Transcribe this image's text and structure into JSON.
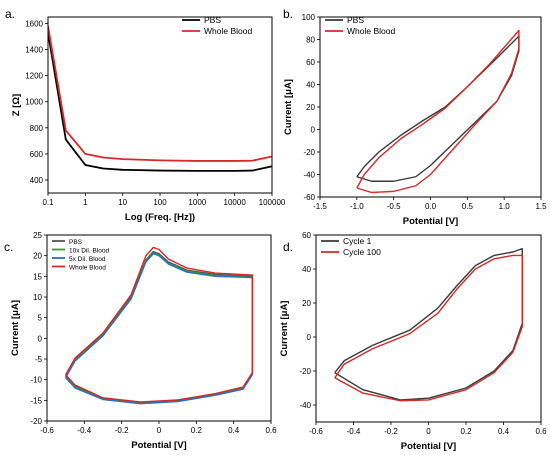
{
  "chart_data": [
    {
      "id": "a",
      "panel_label": "a.",
      "type": "line",
      "xlabel": "Log (Freq. [Hz])",
      "ylabel": "Z [Ω]",
      "xscale": "log",
      "xlim": [
        0.1,
        100000
      ],
      "ylim": [
        300,
        1650
      ],
      "xticks": [
        0.1,
        1,
        10,
        100,
        1000,
        10000,
        100000
      ],
      "xtick_labels": [
        "0.1",
        "1",
        "10",
        "100",
        "1000",
        "10000",
        "100000"
      ],
      "yticks": [
        400,
        600,
        800,
        1000,
        1200,
        1400,
        1600
      ],
      "ytick_labels": [
        "400",
        "600",
        "800",
        "1000",
        "1200",
        "1400",
        "1600"
      ],
      "legend": "top-right",
      "series": [
        {
          "name": "PBS",
          "color": "#000000",
          "points": [
            [
              0.1,
              1530
            ],
            [
              0.3,
              710
            ],
            [
              1,
              515
            ],
            [
              3,
              488
            ],
            [
              10,
              478
            ],
            [
              100,
              472
            ],
            [
              1000,
              470
            ],
            [
              10000,
              470
            ],
            [
              30000,
              472
            ],
            [
              100000,
              505
            ]
          ]
        },
        {
          "name": "Whole Blood",
          "color": "#d42a2a",
          "points": [
            [
              0.1,
              1580
            ],
            [
              0.3,
              780
            ],
            [
              1,
              600
            ],
            [
              3,
              572
            ],
            [
              10,
              560
            ],
            [
              100,
              550
            ],
            [
              1000,
              546
            ],
            [
              10000,
              546
            ],
            [
              30000,
              548
            ],
            [
              100000,
              580
            ]
          ]
        }
      ]
    },
    {
      "id": "b",
      "panel_label": "b.",
      "type": "line",
      "xlabel": "Potential [V]",
      "ylabel": "Current [μA]",
      "xlim": [
        -1.5,
        1.5
      ],
      "ylim": [
        -60,
        100
      ],
      "xticks": [
        -1.5,
        -1,
        -0.5,
        0,
        0.5,
        1,
        1.5
      ],
      "xtick_labels": [
        "-1.5",
        "-1.0",
        "-0.5",
        "0.0",
        "0.5",
        "1.0",
        "1.5"
      ],
      "yticks": [
        -60,
        -40,
        -20,
        0,
        20,
        40,
        60,
        80,
        100
      ],
      "ytick_labels": [
        "-60",
        "-40",
        "-20",
        "0",
        "20",
        "40",
        "60",
        "80",
        "100"
      ],
      "legend": "top-left",
      "series": [
        {
          "name": "PBS",
          "color": "#3a3a3a",
          "points": [
            [
              -1,
              -42
            ],
            [
              -0.9,
              -33
            ],
            [
              -0.7,
              -20
            ],
            [
              -0.4,
              -5
            ],
            [
              -0.1,
              8
            ],
            [
              0.2,
              20
            ],
            [
              0.5,
              38
            ],
            [
              0.8,
              57
            ],
            [
              1.2,
              83
            ],
            [
              1.2,
              70
            ],
            [
              1.1,
              48
            ],
            [
              0.9,
              25
            ],
            [
              0.6,
              6
            ],
            [
              0.3,
              -13
            ],
            [
              0,
              -32
            ],
            [
              -0.2,
              -42
            ],
            [
              -0.5,
              -46
            ],
            [
              -0.8,
              -46
            ],
            [
              -1,
              -42
            ]
          ]
        },
        {
          "name": "Whole Blood",
          "color": "#d42a2a",
          "points": [
            [
              -1,
              -52
            ],
            [
              -0.9,
              -40
            ],
            [
              -0.7,
              -25
            ],
            [
              -0.4,
              -8
            ],
            [
              -0.1,
              5
            ],
            [
              0.2,
              19
            ],
            [
              0.5,
              38
            ],
            [
              0.8,
              58
            ],
            [
              1.2,
              88
            ],
            [
              1.2,
              72
            ],
            [
              1.1,
              50
            ],
            [
              0.9,
              25
            ],
            [
              0.6,
              4
            ],
            [
              0.3,
              -18
            ],
            [
              0,
              -40
            ],
            [
              -0.2,
              -50
            ],
            [
              -0.5,
              -55
            ],
            [
              -0.8,
              -56
            ],
            [
              -1,
              -52
            ]
          ]
        }
      ]
    },
    {
      "id": "c",
      "panel_label": "c.",
      "type": "line",
      "xlabel": "Potential [V]",
      "ylabel": "Current [μA]",
      "xlim": [
        -0.6,
        0.6
      ],
      "ylim": [
        -20,
        25
      ],
      "xticks": [
        -0.6,
        -0.4,
        -0.2,
        0,
        0.2,
        0.4,
        0.6
      ],
      "xtick_labels": [
        "-0.6",
        "-0.4",
        "-0.2",
        "0",
        "0.2",
        "0.4",
        "0.6"
      ],
      "yticks": [
        -20,
        -15,
        -10,
        -5,
        0,
        5,
        10,
        15,
        20,
        25
      ],
      "ytick_labels": [
        "-20",
        "-15",
        "-10",
        "-5",
        "0",
        "5",
        "10",
        "15",
        "20",
        "25"
      ],
      "legend": "top-left",
      "series": [
        {
          "name": "PBS",
          "color": "#555555",
          "points": [
            [
              -0.5,
              -9
            ],
            [
              -0.45,
              -5
            ],
            [
              -0.3,
              1
            ],
            [
              -0.15,
              10
            ],
            [
              -0.07,
              19
            ],
            [
              -0.03,
              21
            ],
            [
              0,
              20.5
            ],
            [
              0.05,
              18.5
            ],
            [
              0.15,
              16.5
            ],
            [
              0.3,
              15.5
            ],
            [
              0.5,
              15
            ],
            [
              0.5,
              -8.5
            ],
            [
              0.45,
              -12
            ],
            [
              0.3,
              -13.5
            ],
            [
              0.1,
              -15
            ],
            [
              -0.1,
              -15.5
            ],
            [
              -0.3,
              -14.5
            ],
            [
              -0.45,
              -11.5
            ],
            [
              -0.5,
              -9
            ]
          ]
        },
        {
          "name": "10x Dil. Blood",
          "color": "#2ca02c",
          "points": [
            [
              -0.5,
              -9.3
            ],
            [
              -0.45,
              -5.3
            ],
            [
              -0.3,
              0.8
            ],
            [
              -0.15,
              9.7
            ],
            [
              -0.07,
              18.7
            ],
            [
              -0.03,
              20.7
            ],
            [
              0,
              20.2
            ],
            [
              0.05,
              18.2
            ],
            [
              0.15,
              16.2
            ],
            [
              0.3,
              15.2
            ],
            [
              0.5,
              14.8
            ],
            [
              0.5,
              -8.7
            ],
            [
              0.45,
              -12.2
            ],
            [
              0.3,
              -13.7
            ],
            [
              0.1,
              -15.2
            ],
            [
              -0.1,
              -15.7
            ],
            [
              -0.3,
              -14.7
            ],
            [
              -0.45,
              -11.8
            ],
            [
              -0.5,
              -9.3
            ]
          ]
        },
        {
          "name": "5x Dil. Blood",
          "color": "#2b6cc4",
          "points": [
            [
              -0.5,
              -9.5
            ],
            [
              -0.45,
              -5.5
            ],
            [
              -0.3,
              0.6
            ],
            [
              -0.15,
              9.5
            ],
            [
              -0.07,
              18.5
            ],
            [
              -0.03,
              20.5
            ],
            [
              0,
              20
            ],
            [
              0.05,
              18
            ],
            [
              0.15,
              16
            ],
            [
              0.3,
              15
            ],
            [
              0.5,
              14.7
            ],
            [
              0.5,
              -8.8
            ],
            [
              0.45,
              -12.3
            ],
            [
              0.3,
              -13.8
            ],
            [
              0.1,
              -15.3
            ],
            [
              -0.1,
              -15.8
            ],
            [
              -0.3,
              -14.8
            ],
            [
              -0.45,
              -12
            ],
            [
              -0.5,
              -9.5
            ]
          ]
        },
        {
          "name": "Whole Blood",
          "color": "#d42a2a",
          "points": [
            [
              -0.5,
              -8.8
            ],
            [
              -0.45,
              -4.8
            ],
            [
              -0.3,
              1.3
            ],
            [
              -0.15,
              10.5
            ],
            [
              -0.07,
              20
            ],
            [
              -0.03,
              22
            ],
            [
              0,
              21.5
            ],
            [
              0.05,
              19.2
            ],
            [
              0.15,
              17
            ],
            [
              0.3,
              15.8
            ],
            [
              0.5,
              15.3
            ],
            [
              0.5,
              -8.3
            ],
            [
              0.45,
              -11.8
            ],
            [
              0.3,
              -13.4
            ],
            [
              0.1,
              -14.9
            ],
            [
              -0.1,
              -15.4
            ],
            [
              -0.3,
              -14.4
            ],
            [
              -0.45,
              -11.3
            ],
            [
              -0.5,
              -8.8
            ]
          ]
        }
      ]
    },
    {
      "id": "d",
      "panel_label": "d.",
      "type": "line",
      "xlabel": "Potential [V]",
      "ylabel": "Current [μA]",
      "xlim": [
        -0.6,
        0.6
      ],
      "ylim": [
        -50,
        60
      ],
      "xticks": [
        -0.6,
        -0.4,
        -0.2,
        0,
        0.2,
        0.4,
        0.6
      ],
      "xtick_labels": [
        "-0.6",
        "-0.4",
        "-0.2",
        "0",
        "0.2",
        "0.4",
        "0.6"
      ],
      "yticks": [
        -40,
        -20,
        0,
        20,
        40,
        60
      ],
      "ytick_labels": [
        "-40",
        "-20",
        "0",
        "20",
        "40",
        "60"
      ],
      "legend": "top-left",
      "series": [
        {
          "name": "Cycle 1",
          "color": "#3a3a3a",
          "points": [
            [
              -0.5,
              -21
            ],
            [
              -0.45,
              -14
            ],
            [
              -0.3,
              -5
            ],
            [
              -0.1,
              4
            ],
            [
              0.05,
              17
            ],
            [
              0.15,
              30
            ],
            [
              0.25,
              42
            ],
            [
              0.35,
              48
            ],
            [
              0.45,
              50
            ],
            [
              0.5,
              52
            ],
            [
              0.5,
              8
            ],
            [
              0.45,
              -8
            ],
            [
              0.35,
              -20
            ],
            [
              0.2,
              -30
            ],
            [
              0,
              -36
            ],
            [
              -0.15,
              -37
            ],
            [
              -0.35,
              -31
            ],
            [
              -0.5,
              -21
            ]
          ]
        },
        {
          "name": "Cycle 100",
          "color": "#d42a2a",
          "points": [
            [
              -0.5,
              -24
            ],
            [
              -0.45,
              -16
            ],
            [
              -0.3,
              -7
            ],
            [
              -0.1,
              2
            ],
            [
              0.05,
              14
            ],
            [
              0.15,
              28
            ],
            [
              0.25,
              40
            ],
            [
              0.35,
              46
            ],
            [
              0.45,
              48
            ],
            [
              0.5,
              48
            ],
            [
              0.5,
              6
            ],
            [
              0.45,
              -9
            ],
            [
              0.35,
              -21
            ],
            [
              0.2,
              -31
            ],
            [
              0,
              -37
            ],
            [
              -0.15,
              -37.5
            ],
            [
              -0.35,
              -33
            ],
            [
              -0.5,
              -24
            ]
          ]
        }
      ]
    }
  ]
}
